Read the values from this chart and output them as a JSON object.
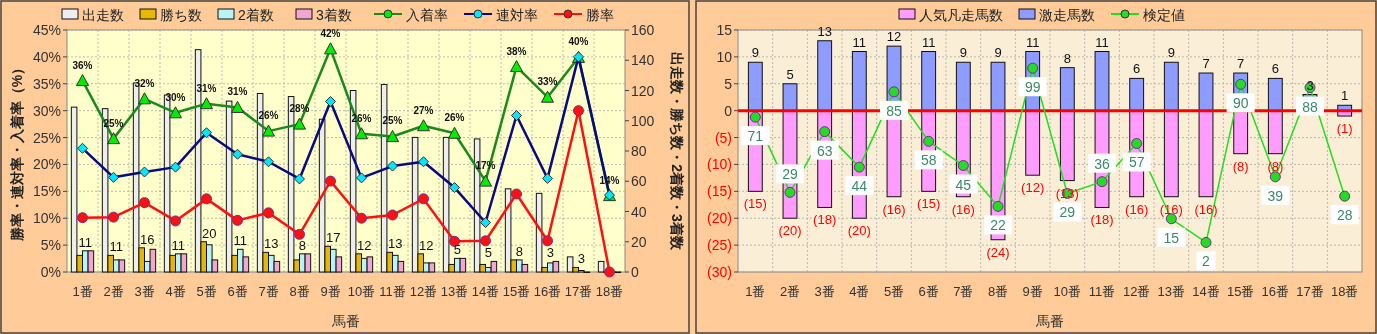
{
  "chart_data": [
    {
      "type": "bar",
      "xlabel": "馬番",
      "ylabel": "勝率・連対率・入着率（%）",
      "y2label": "出走数・勝ち数・2着数・3着数",
      "categories": [
        "1番",
        "2番",
        "3番",
        "4番",
        "5番",
        "6番",
        "7番",
        "8番",
        "9番",
        "10番",
        "11番",
        "12番",
        "13番",
        "14番",
        "15番",
        "16番",
        "17番",
        "18番"
      ],
      "ylim": [
        0,
        45
      ],
      "yticks": [
        {
          "value": 0,
          "label": "0%"
        },
        {
          "value": 5,
          "label": "5%"
        },
        {
          "value": 10,
          "label": "10%"
        },
        {
          "value": 15,
          "label": "15%"
        },
        {
          "value": 20,
          "label": "20%"
        },
        {
          "value": 25,
          "label": "25%"
        },
        {
          "value": 30,
          "label": "30%"
        },
        {
          "value": 35,
          "label": "35%"
        },
        {
          "value": 40,
          "label": "40%"
        },
        {
          "value": 45,
          "label": "45%"
        }
      ],
      "y2lim": [
        0,
        160
      ],
      "y2ticks": [
        0,
        20,
        40,
        60,
        80,
        100,
        120,
        140,
        160
      ],
      "grid": true,
      "legend": "top",
      "series": [
        {
          "name": "出走数",
          "type": "bar",
          "axis": "y2",
          "color": "#eeeeee",
          "values": [
            109,
            108,
            125,
            117,
            147,
            113,
            118,
            116,
            101,
            120,
            124,
            89,
            89,
            88,
            55,
            52,
            10,
            7
          ]
        },
        {
          "name": "勝ち数",
          "type": "bar",
          "axis": "y2",
          "color": "#e8b800",
          "values": [
            11,
            11,
            16,
            11,
            20,
            11,
            13,
            8,
            17,
            12,
            13,
            12,
            5,
            5,
            8,
            3,
            3,
            0
          ],
          "value_labels": [
            "11",
            "11",
            "16",
            "11",
            "20",
            "11",
            "13",
            "8",
            "17",
            "12",
            "13",
            "12",
            "5",
            "5",
            "8",
            "3",
            "3",
            null
          ]
        },
        {
          "name": "2着数",
          "type": "bar",
          "axis": "y2",
          "color": "#b8f4f4",
          "values": [
            14,
            8,
            7,
            12,
            18,
            15,
            11,
            12,
            15,
            9,
            11,
            6,
            9,
            3,
            8,
            6,
            1,
            0
          ]
        },
        {
          "name": "3着数",
          "type": "bar",
          "axis": "y2",
          "color": "#f2a6d2",
          "values": [
            14,
            8,
            15,
            12,
            8,
            10,
            7,
            12,
            10,
            10,
            7,
            6,
            9,
            7,
            5,
            7,
            0,
            0
          ]
        },
        {
          "name": "入着率",
          "type": "line",
          "axis": "y",
          "marker": "triangle",
          "color": "#1a8a1a",
          "values": [
            35.6,
            24.8,
            32.2,
            29.6,
            31.3,
            30.6,
            26.2,
            27.5,
            41.5,
            25.7,
            25.2,
            27.2,
            25.8,
            16.9,
            38.2,
            32.5,
            39.9,
            14.2
          ],
          "value_labels": [
            "36%",
            "25%",
            "32%",
            "30%",
            "31%",
            "31%",
            "26%",
            "28%",
            "42%",
            "26%",
            "25%",
            "27%",
            "26%",
            "17%",
            "38%",
            "33%",
            "40%",
            "14%"
          ]
        },
        {
          "name": "連対率",
          "type": "line",
          "axis": "y",
          "marker": "diamond",
          "color": "#0a0a80",
          "values": [
            23.0,
            17.6,
            18.6,
            19.5,
            25.9,
            21.9,
            20.5,
            17.3,
            31.7,
            17.5,
            19.7,
            20.5,
            15.7,
            9.2,
            29.1,
            17.4,
            40.0,
            14.3
          ]
        },
        {
          "name": "勝率",
          "type": "line",
          "axis": "y",
          "marker": "circle",
          "color": "#ff1010",
          "values": [
            10.1,
            10.2,
            12.9,
            9.5,
            13.6,
            9.6,
            11.0,
            7.0,
            16.9,
            10.0,
            10.6,
            13.6,
            5.7,
            5.8,
            14.5,
            5.8,
            30.0,
            0
          ]
        }
      ]
    },
    {
      "type": "bar",
      "stacked": true,
      "xlabel": "馬番",
      "categories": [
        "1番",
        "2番",
        "3番",
        "4番",
        "5番",
        "6番",
        "7番",
        "8番",
        "9番",
        "10番",
        "11番",
        "12番",
        "13番",
        "14番",
        "15番",
        "16番",
        "17番",
        "18番"
      ],
      "ylim": [
        -30,
        15
      ],
      "yticks": [
        {
          "value": 15,
          "label": "15"
        },
        {
          "value": 10,
          "label": "10"
        },
        {
          "value": 5,
          "label": "5"
        },
        {
          "value": 0,
          "label": "0"
        },
        {
          "value": -5,
          "label": "(5)"
        },
        {
          "value": -10,
          "label": "(10)"
        },
        {
          "value": -15,
          "label": "(15)"
        },
        {
          "value": -20,
          "label": "(20)"
        },
        {
          "value": -25,
          "label": "(25)"
        },
        {
          "value": -30,
          "label": "(30)"
        }
      ],
      "grid": true,
      "legend": "top",
      "ref_lines": [
        {
          "axis": "y",
          "value": 0,
          "color": "#ff0000"
        }
      ],
      "series": [
        {
          "name": "人気凡走馬数",
          "type": "bar",
          "color": "#ff9cff",
          "values": [
            -15,
            -20,
            -18,
            -20,
            -16,
            -15,
            -16,
            -24,
            -12,
            -13,
            -18,
            -16,
            -16,
            -16,
            -8,
            -8,
            null,
            -1
          ],
          "value_labels": [
            "(15)",
            "(20)",
            "(18)",
            "(20)",
            "(16)",
            "(15)",
            "(16)",
            "(24)",
            "(12)",
            "(13)",
            "(18)",
            "(16)",
            "(16)",
            "(16)",
            "(8)",
            "(8)",
            null,
            "(1)"
          ]
        },
        {
          "name": "激走馬数",
          "type": "bar",
          "color": "#8e9cff",
          "values": [
            9,
            5,
            13,
            11,
            12,
            11,
            9,
            9,
            11,
            8,
            11,
            6,
            9,
            7,
            7,
            6,
            3,
            1
          ],
          "value_labels": [
            "9",
            "5",
            "13",
            "11",
            "12",
            "11",
            "9",
            "9",
            "11",
            "8",
            "11",
            "6",
            "9",
            "7",
            "7",
            "6",
            "3",
            "1"
          ]
        },
        {
          "name": "検定値",
          "type": "line",
          "marker": "circle",
          "color": "#22dd22",
          "values": [
            -1.2,
            -15.2,
            -3.9,
            -10.5,
            3.5,
            -5.7,
            -10.2,
            -17.8,
            7.9,
            -15.4,
            -13.2,
            -6.1,
            -20.1,
            -24.5,
            4.9,
            -12.3,
            4.3,
            -15.9
          ]
        }
      ],
      "annotations": [
        {
          "text": "71",
          "x": "1番",
          "y": -1.2
        },
        {
          "text": "29",
          "x": "2番",
          "y": -15.2
        },
        {
          "text": "63",
          "x": "3番",
          "y": -3.9
        },
        {
          "text": "44",
          "x": "4番",
          "y": -10.5
        },
        {
          "text": "85",
          "x": "5番",
          "y": 3.5
        },
        {
          "text": "58",
          "x": "6番",
          "y": -5.7
        },
        {
          "text": "45",
          "x": "7番",
          "y": -10.2
        },
        {
          "text": "22",
          "x": "8番",
          "y": -17.8
        },
        {
          "text": "99",
          "x": "9番",
          "y": 7.9
        },
        {
          "text": "29",
          "x": "10番",
          "y": -15.4
        },
        {
          "text": "36",
          "x": "11番",
          "y": -13.2
        },
        {
          "text": "57",
          "x": "12番",
          "y": -6.1
        },
        {
          "text": "15",
          "x": "13番",
          "y": -20.1
        },
        {
          "text": "2",
          "x": "14番",
          "y": -24.5
        },
        {
          "text": "90",
          "x": "15番",
          "y": 4.9
        },
        {
          "text": "39",
          "x": "16番",
          "y": -12.3
        },
        {
          "text": "88",
          "x": "17番",
          "y": 4.3
        },
        {
          "text": "28",
          "x": "18番",
          "y": -15.9
        }
      ]
    }
  ]
}
